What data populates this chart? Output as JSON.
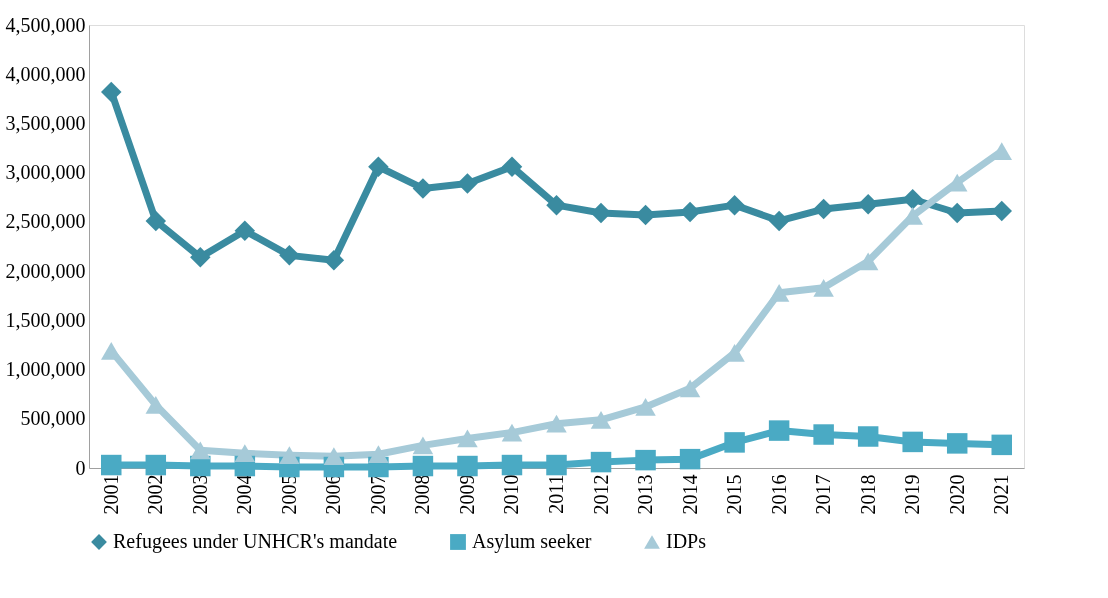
{
  "chart_data": {
    "type": "line",
    "categories": [
      "2001",
      "2002",
      "2003",
      "2004",
      "2005",
      "2006",
      "2007",
      "2008",
      "2009",
      "2010",
      "2011",
      "2012",
      "2013",
      "2014",
      "2015",
      "2016",
      "2017",
      "2018",
      "2019",
      "2020",
      "2021"
    ],
    "series": [
      {
        "name": "Refugees under UNHCR's mandate",
        "color": "#3a8ba0",
        "marker": "diamond",
        "values": [
          3820000,
          2510000,
          2140000,
          2410000,
          2160000,
          2110000,
          3060000,
          2840000,
          2890000,
          3060000,
          2670000,
          2590000,
          2570000,
          2600000,
          2670000,
          2510000,
          2630000,
          2680000,
          2730000,
          2590000,
          2610000
        ]
      },
      {
        "name": "Asylum seeker",
        "color": "#4aaac4",
        "marker": "square",
        "values": [
          30000,
          30000,
          20000,
          20000,
          10000,
          10000,
          10000,
          20000,
          20000,
          30000,
          30000,
          60000,
          80000,
          90000,
          260000,
          380000,
          340000,
          320000,
          265000,
          250000,
          235000
        ]
      },
      {
        "name": "IDPs",
        "color": "#a6cad8",
        "marker": "triangle",
        "values": [
          1190000,
          640000,
          180000,
          150000,
          130000,
          120000,
          140000,
          230000,
          300000,
          360000,
          450000,
          490000,
          620000,
          810000,
          1170000,
          1780000,
          1830000,
          2100000,
          2560000,
          2900000,
          3220000
        ]
      }
    ],
    "ylim": [
      0,
      4500000
    ],
    "yticks": [
      0,
      {
        "value": 500000,
        "label": "500,000"
      },
      {
        "value": 1000000,
        "label": "1,000,000"
      },
      {
        "value": 1500000,
        "label": "1,500,000"
      },
      {
        "value": 2000000,
        "label": "2,000,000"
      },
      {
        "value": 2500000,
        "label": "2,500,000"
      },
      {
        "value": 3000000,
        "label": "3,000,000"
      },
      {
        "value": 3500000,
        "label": "3,500,000"
      },
      {
        "value": 4000000,
        "label": "4,000,000"
      },
      {
        "value": 4500000,
        "label": "4,500,000"
      }
    ],
    "grid": false,
    "legend": "bottom",
    "line_style": "solid"
  }
}
